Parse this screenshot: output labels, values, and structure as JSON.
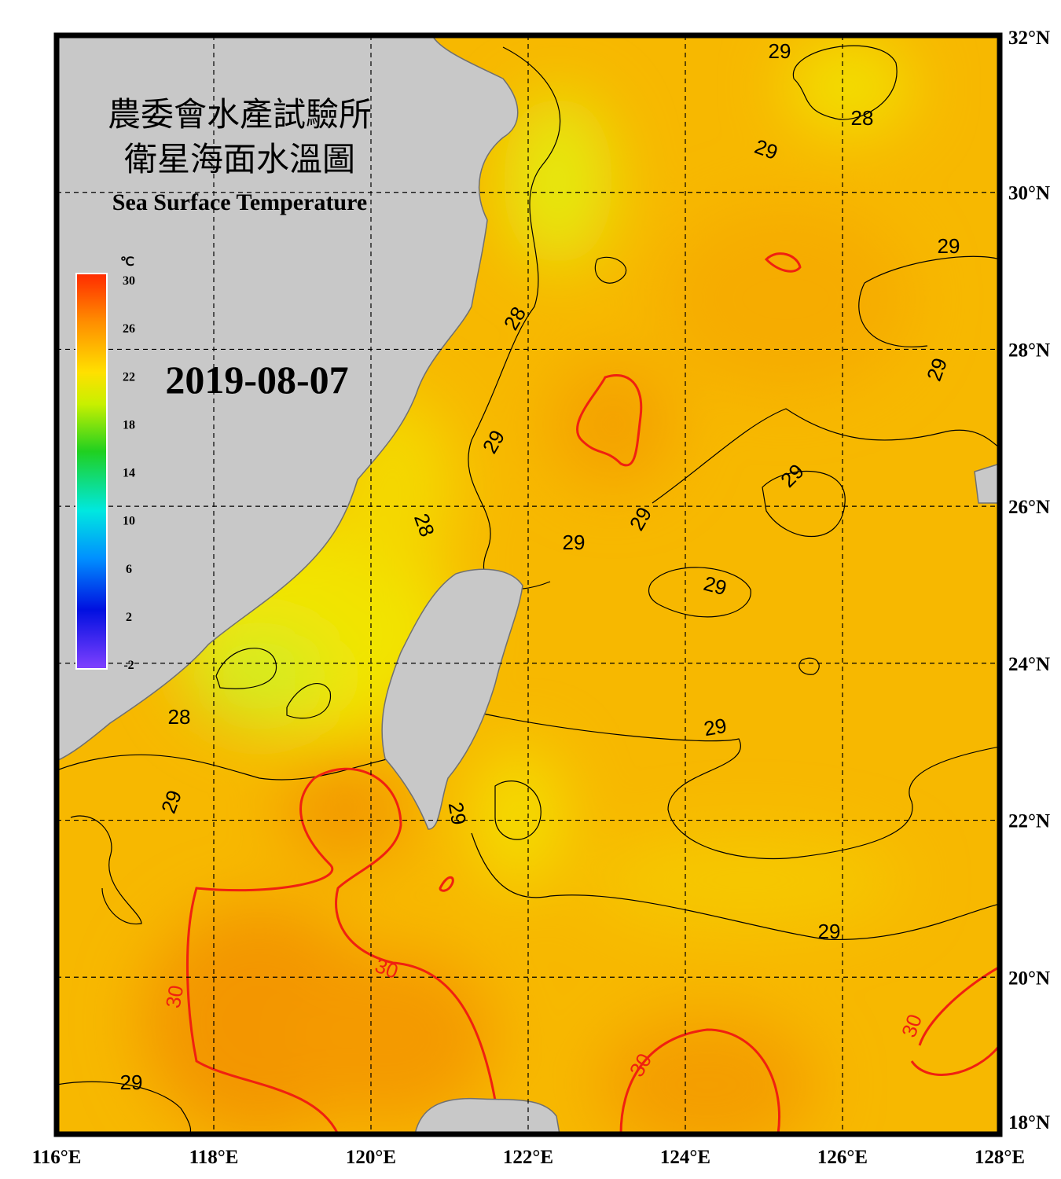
{
  "map": {
    "title_zh": [
      "農委會水產試驗所",
      "衛星海面水溫圖"
    ],
    "title_en": "Sea Surface Temperature",
    "date": "2019-08-07",
    "colorbar": {
      "unit": "℃",
      "ticks": [
        "30",
        "26",
        "22",
        "18",
        "14",
        "10",
        "6",
        "2",
        "-2"
      ]
    },
    "lon_labels": [
      "116°E",
      "118°E",
      "120°E",
      "122°E",
      "124°E",
      "126°E",
      "128°E"
    ],
    "lat_labels": [
      "32°N",
      "30°N",
      "28°N",
      "26°N",
      "24°N",
      "22°N",
      "20°N",
      "18°N"
    ],
    "contour_labels": [
      "29",
      "28",
      "29",
      "29",
      "28",
      "29",
      "29",
      "29",
      "28",
      "29",
      "29",
      "29",
      "29",
      "28",
      "29",
      "29",
      "29",
      "30",
      "30",
      "30",
      "30",
      "29"
    ]
  }
}
